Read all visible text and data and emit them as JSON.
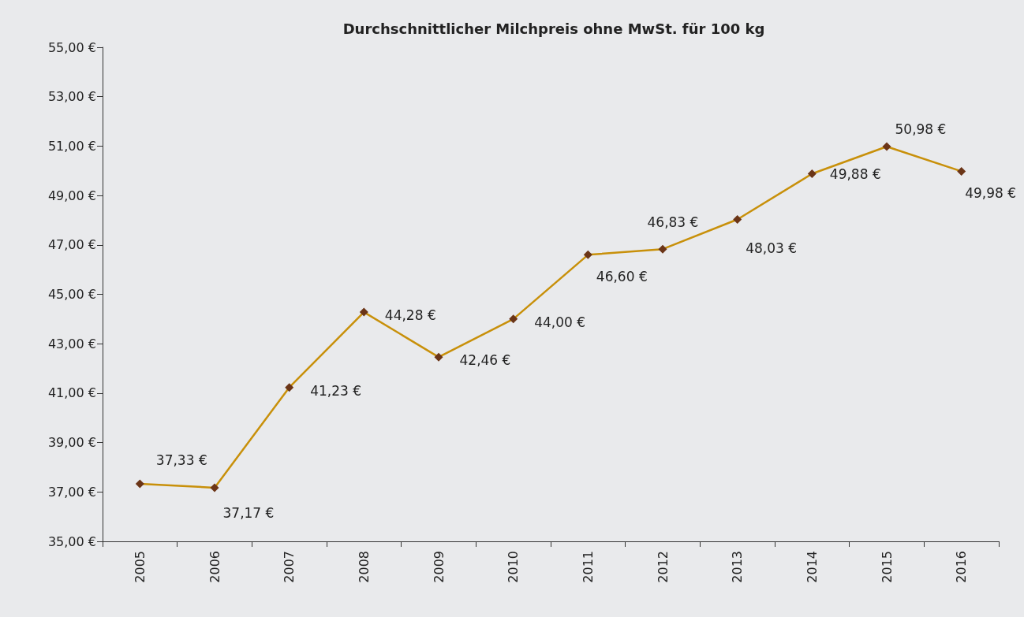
{
  "chart_data": {
    "type": "line",
    "title": "Durchschnittlicher Milchpreis ohne MwSt. für 100 kg",
    "categories": [
      "2005",
      "2006",
      "2007",
      "2008",
      "2009",
      "2010",
      "2011",
      "2012",
      "2013",
      "2014",
      "2015",
      "2016"
    ],
    "series": [
      {
        "color": "#c8900a",
        "values": [
          37.33,
          37.17,
          41.23,
          44.28,
          42.46,
          44.0,
          46.6,
          46.83,
          48.03,
          49.88,
          50.98,
          49.98
        ],
        "value_labels": [
          "37,33 €",
          "37,17 €",
          "41,23 €",
          "44,28 €",
          "42,46 €",
          "44,00 €",
          "46,60 €",
          "46,83 €",
          "48,03 €",
          "49,88 €",
          "50,98 €",
          "49,98 €"
        ]
      }
    ],
    "ylim": [
      35,
      55
    ],
    "yticks": [
      {
        "value": 35,
        "label": "35,00 €"
      },
      {
        "value": 37,
        "label": "37,00 €"
      },
      {
        "value": 39,
        "label": "39,00 €"
      },
      {
        "value": 41,
        "label": "41,00 €"
      },
      {
        "value": 43,
        "label": "43,00 €"
      },
      {
        "value": 45,
        "label": "45,00 €"
      },
      {
        "value": 47,
        "label": "47,00 €"
      },
      {
        "value": 49,
        "label": "49,00 €"
      },
      {
        "value": 51,
        "label": "51,00 €"
      },
      {
        "value": 53,
        "label": "53,00 €"
      },
      {
        "value": 55,
        "label": "55,00 €"
      }
    ],
    "grid": false,
    "marker": "diamond",
    "line_style": "solid"
  }
}
